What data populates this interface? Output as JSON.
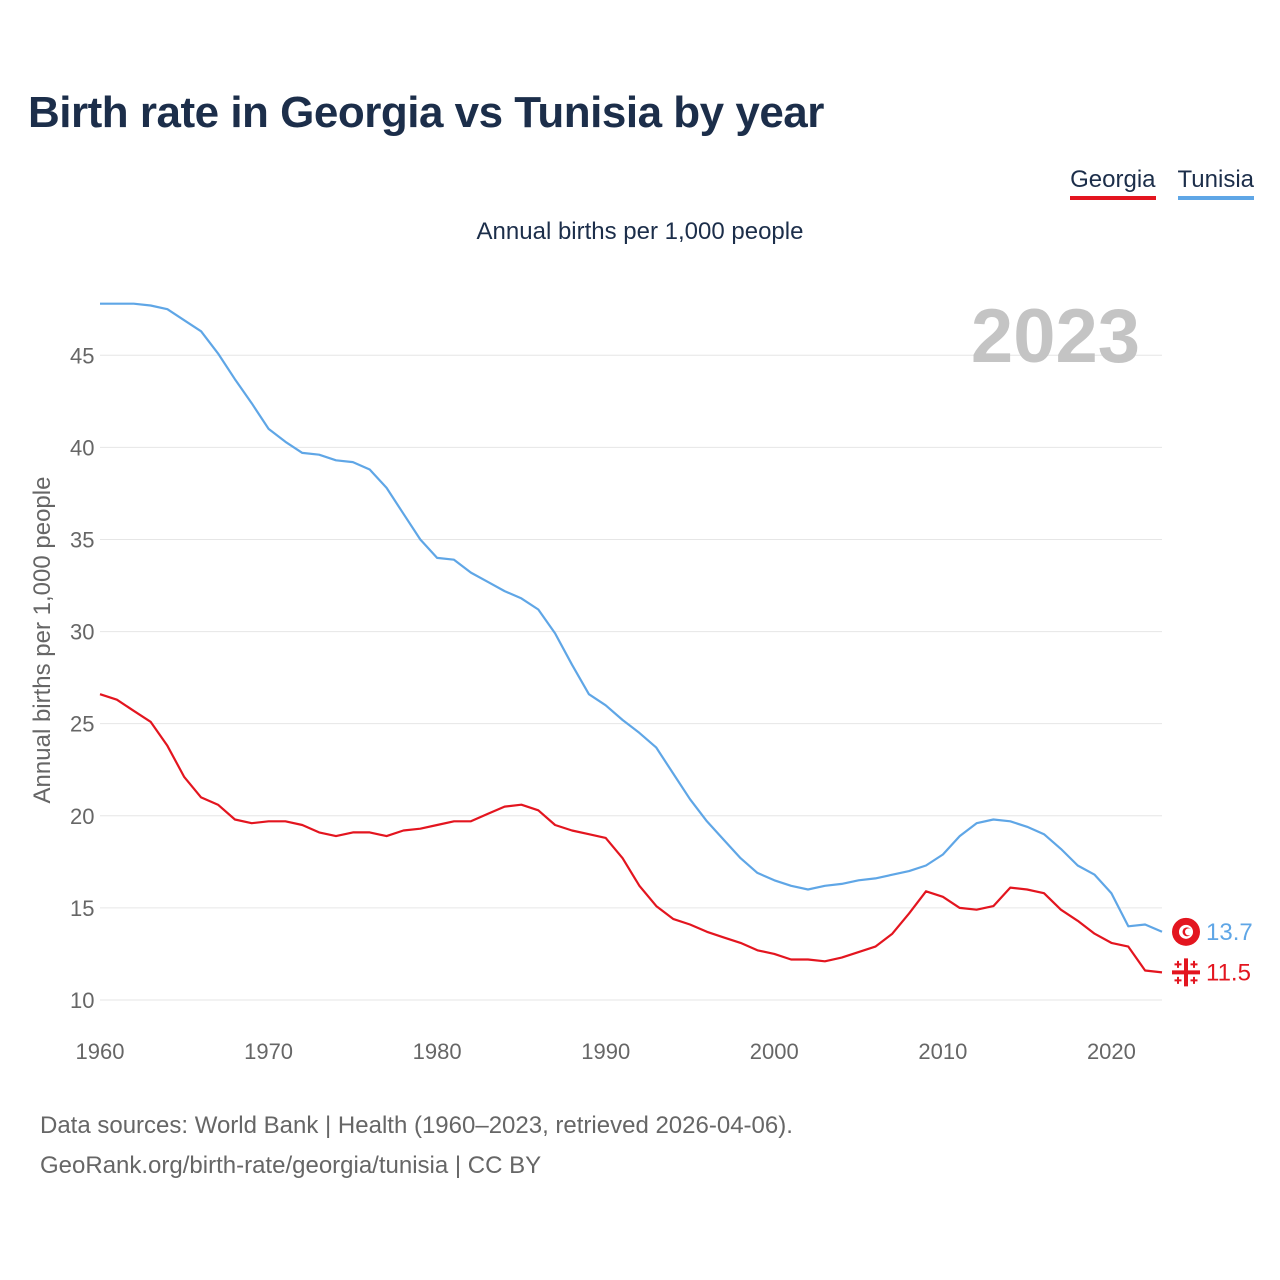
{
  "title": "Birth rate in Georgia vs Tunisia by year",
  "subtitle": "Annual births per 1,000 people",
  "legend": [
    {
      "label": "Georgia",
      "color": "#e3151f"
    },
    {
      "label": "Tunisia",
      "color": "#5fa6e6"
    }
  ],
  "footer": {
    "line1": "Data sources: World Bank | Health (1960–2023, retrieved 2026-04-06).",
    "line2": "GeoRank.org/birth-rate/georgia/tunisia | CC BY"
  },
  "chart_data": {
    "type": "line",
    "title": "Birth rate in Georgia vs Tunisia by year",
    "xlabel": "",
    "ylabel": "Annual births per 1,000 people",
    "xlim": [
      1960,
      2023
    ],
    "ylim": [
      10,
      48
    ],
    "x_ticks": [
      1960,
      1970,
      1980,
      1990,
      2000,
      2010,
      2020
    ],
    "y_ticks": [
      10,
      15,
      20,
      25,
      30,
      35,
      40,
      45
    ],
    "grid": true,
    "legend_position": "top-right",
    "year_overlay": "2023",
    "x": [
      1960,
      1961,
      1962,
      1963,
      1964,
      1965,
      1966,
      1967,
      1968,
      1969,
      1970,
      1971,
      1972,
      1973,
      1974,
      1975,
      1976,
      1977,
      1978,
      1979,
      1980,
      1981,
      1982,
      1983,
      1984,
      1985,
      1986,
      1987,
      1988,
      1989,
      1990,
      1991,
      1992,
      1993,
      1994,
      1995,
      1996,
      1997,
      1998,
      1999,
      2000,
      2001,
      2002,
      2003,
      2004,
      2005,
      2006,
      2007,
      2008,
      2009,
      2010,
      2011,
      2012,
      2013,
      2014,
      2015,
      2016,
      2017,
      2018,
      2019,
      2020,
      2021,
      2022,
      2023
    ],
    "series": [
      {
        "name": "Georgia",
        "color": "#e3151f",
        "end_label": "11.5",
        "flag": "georgia-flag-icon",
        "values": [
          26.6,
          26.3,
          25.7,
          25.1,
          23.8,
          22.1,
          21.0,
          20.6,
          19.8,
          19.6,
          19.7,
          19.7,
          19.5,
          19.1,
          18.9,
          19.1,
          19.1,
          18.9,
          19.2,
          19.3,
          19.5,
          19.7,
          19.7,
          20.1,
          20.5,
          20.6,
          20.3,
          19.5,
          19.2,
          19.0,
          18.8,
          17.7,
          16.2,
          15.1,
          14.4,
          14.1,
          13.7,
          13.4,
          13.1,
          12.7,
          12.5,
          12.2,
          12.2,
          12.1,
          12.3,
          12.6,
          12.9,
          13.6,
          14.7,
          15.9,
          15.6,
          15.0,
          14.9,
          15.1,
          16.1,
          16.0,
          15.8,
          14.9,
          14.3,
          13.6,
          13.1,
          12.9,
          11.6,
          11.5
        ]
      },
      {
        "name": "Tunisia",
        "color": "#5fa6e6",
        "end_label": "13.7",
        "flag": "tunisia-flag-icon",
        "values": [
          47.8,
          47.8,
          47.8,
          47.7,
          47.5,
          46.9,
          46.3,
          45.1,
          43.7,
          42.4,
          41.0,
          40.3,
          39.7,
          39.6,
          39.3,
          39.2,
          38.8,
          37.8,
          36.4,
          35.0,
          34.0,
          33.9,
          33.2,
          32.7,
          32.2,
          31.8,
          31.2,
          29.9,
          28.2,
          26.6,
          26.0,
          25.2,
          24.5,
          23.7,
          22.3,
          20.9,
          19.7,
          18.7,
          17.7,
          16.9,
          16.5,
          16.2,
          16.0,
          16.2,
          16.3,
          16.5,
          16.6,
          16.8,
          17.0,
          17.3,
          17.9,
          18.9,
          19.6,
          19.8,
          19.7,
          19.4,
          19.0,
          18.2,
          17.3,
          16.8,
          15.8,
          14.0,
          14.1,
          13.7
        ]
      }
    ]
  }
}
